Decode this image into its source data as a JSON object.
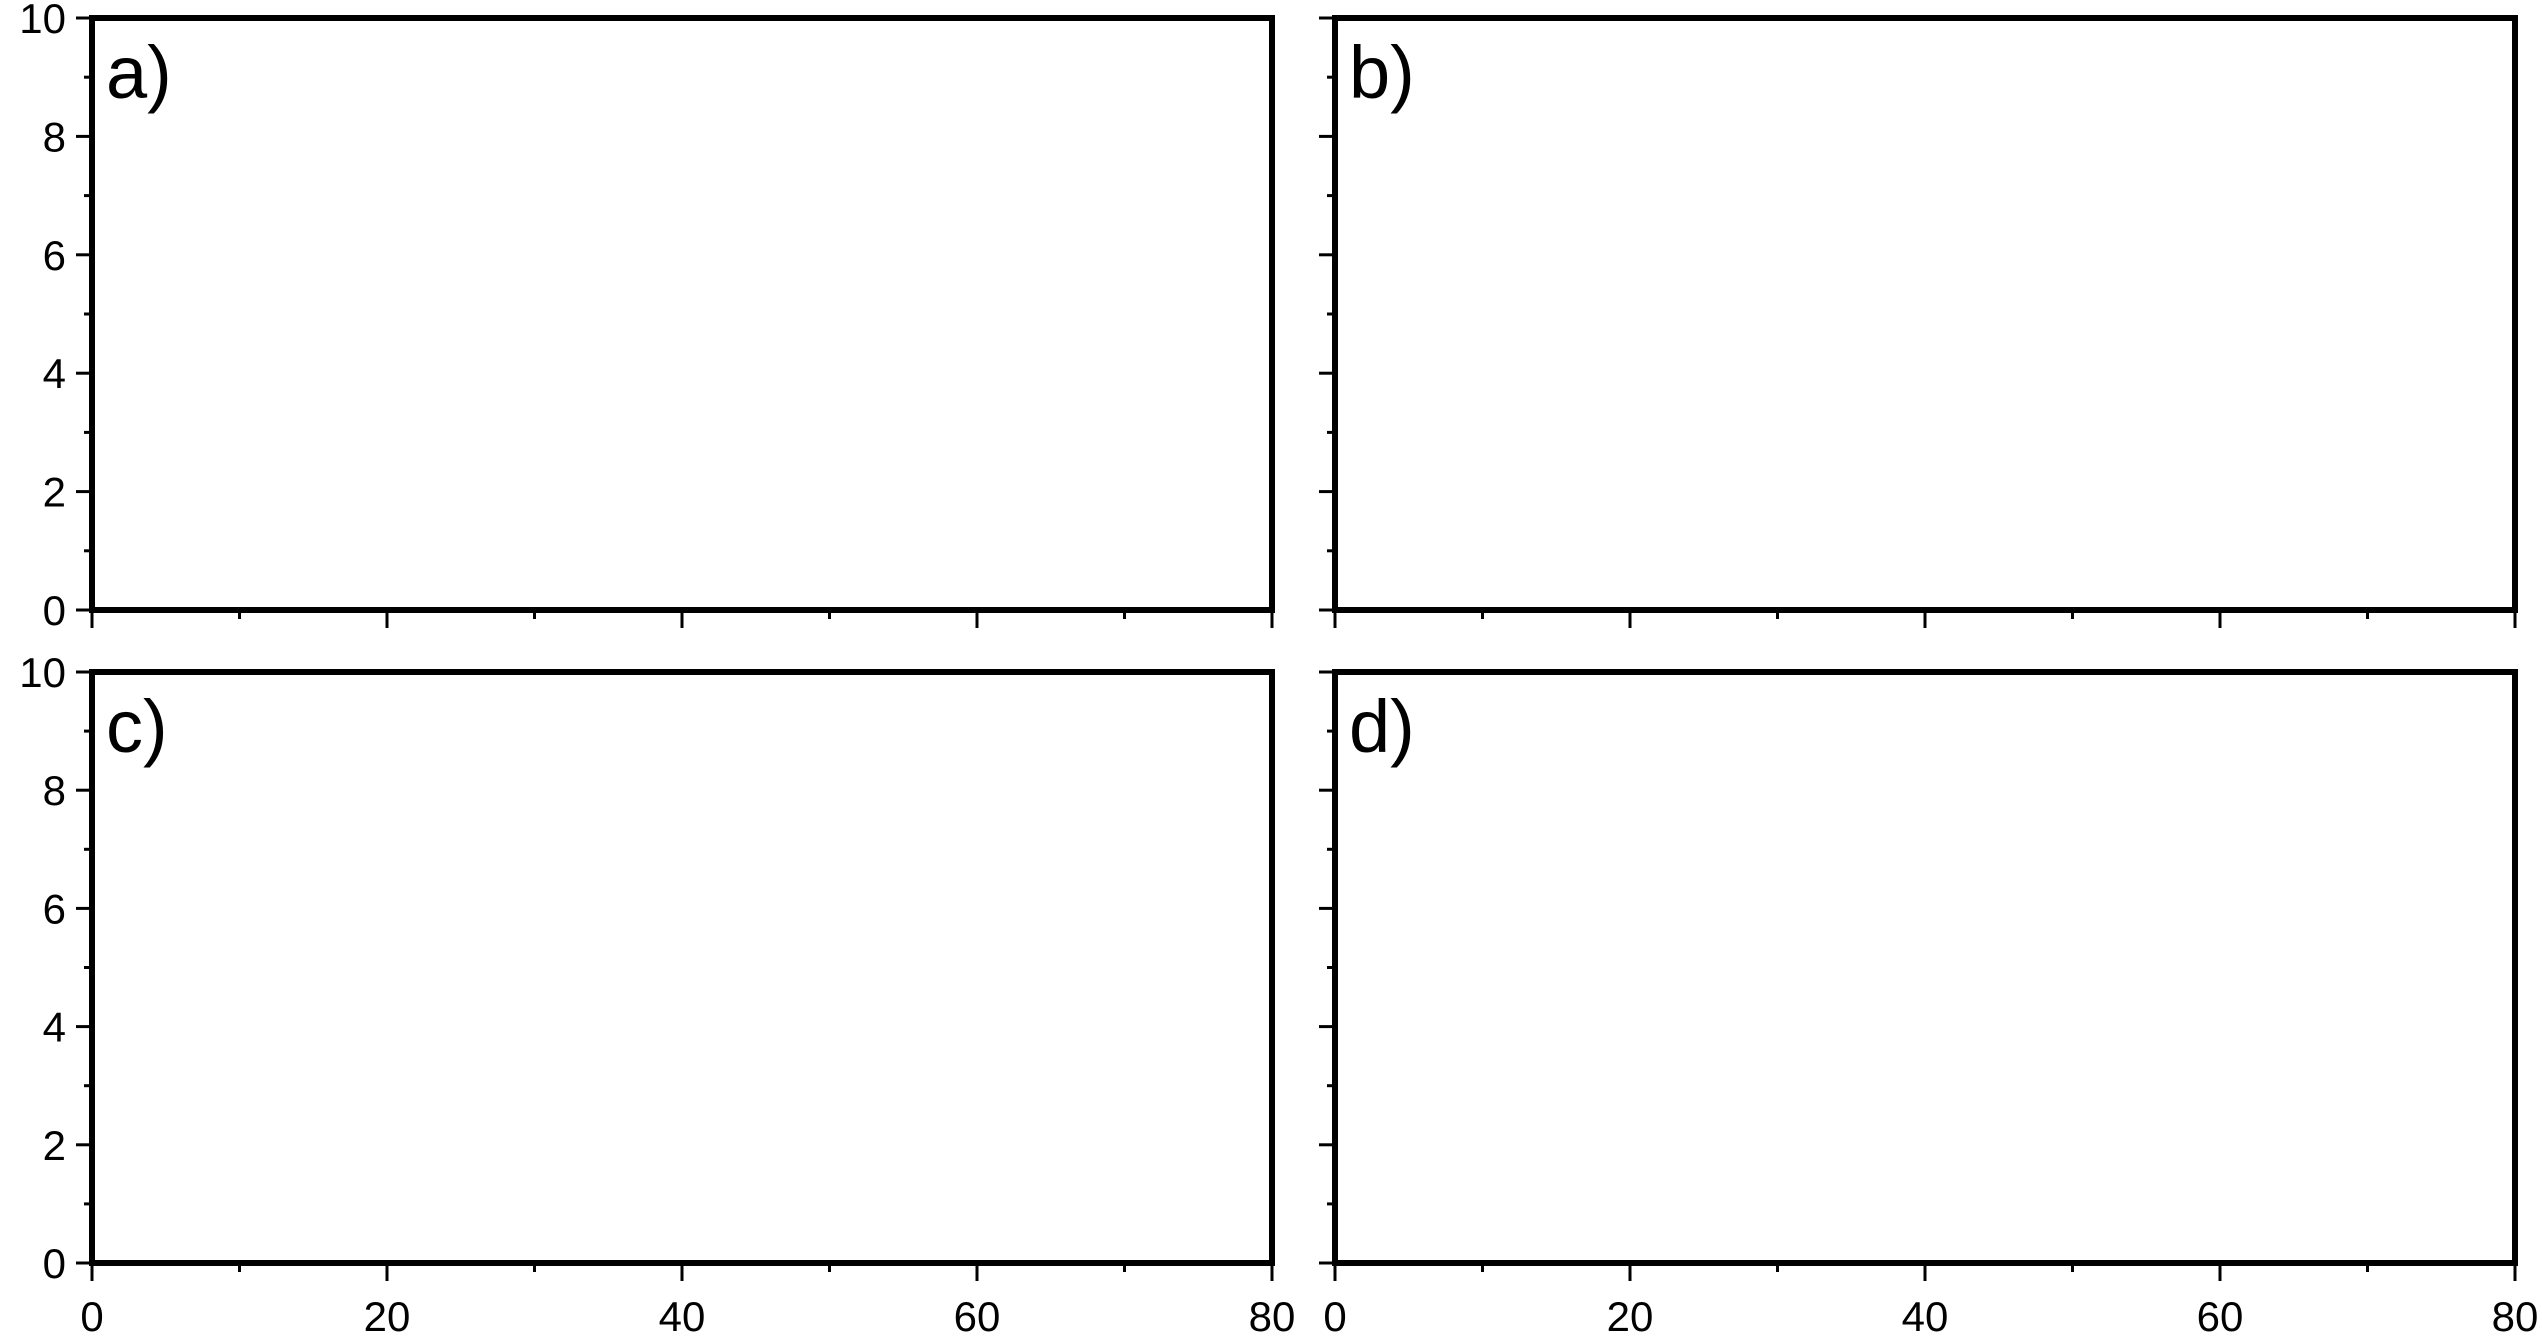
{
  "chart_data": [
    {
      "type": "line",
      "panel_label": "a)",
      "xlim": [
        0,
        80
      ],
      "ylim": [
        0,
        10
      ],
      "x_ticks": [
        0,
        20,
        40,
        60,
        80
      ],
      "x_minor_ticks": [
        10,
        30,
        50,
        70
      ],
      "y_ticks": [
        0,
        2,
        4,
        6,
        8,
        10
      ],
      "y_minor_ticks": [
        1,
        3,
        5,
        7,
        9
      ],
      "x_tick_labels": [],
      "y_tick_labels": [
        "0",
        "2",
        "4",
        "6",
        "8",
        "10"
      ],
      "series": [],
      "grid": false
    },
    {
      "type": "line",
      "panel_label": "b)",
      "xlim": [
        0,
        80
      ],
      "ylim": [
        0,
        10
      ],
      "x_ticks": [
        0,
        20,
        40,
        60,
        80
      ],
      "x_minor_ticks": [
        10,
        30,
        50,
        70
      ],
      "y_ticks": [
        0,
        2,
        4,
        6,
        8,
        10
      ],
      "y_minor_ticks": [
        1,
        3,
        5,
        7,
        9
      ],
      "x_tick_labels": [],
      "y_tick_labels": [],
      "series": [],
      "grid": false
    },
    {
      "type": "line",
      "panel_label": "c)",
      "xlim": [
        0,
        80
      ],
      "ylim": [
        0,
        10
      ],
      "x_ticks": [
        0,
        20,
        40,
        60,
        80
      ],
      "x_minor_ticks": [
        10,
        30,
        50,
        70
      ],
      "y_ticks": [
        0,
        2,
        4,
        6,
        8,
        10
      ],
      "y_minor_ticks": [
        1,
        3,
        5,
        7,
        9
      ],
      "x_tick_labels": [
        "0",
        "20",
        "40",
        "60",
        "80"
      ],
      "y_tick_labels": [
        "0",
        "2",
        "4",
        "6",
        "8",
        "10"
      ],
      "series": [],
      "grid": false
    },
    {
      "type": "line",
      "panel_label": "d)",
      "xlim": [
        0,
        80
      ],
      "ylim": [
        0,
        10
      ],
      "x_ticks": [
        0,
        20,
        40,
        60,
        80
      ],
      "x_minor_ticks": [
        10,
        30,
        50,
        70
      ],
      "y_ticks": [
        0,
        2,
        4,
        6,
        8,
        10
      ],
      "y_minor_ticks": [
        1,
        3,
        5,
        7,
        9
      ],
      "x_tick_labels": [
        "0",
        "20",
        "40",
        "60",
        "80"
      ],
      "y_tick_labels": [],
      "series": [],
      "grid": false
    }
  ]
}
